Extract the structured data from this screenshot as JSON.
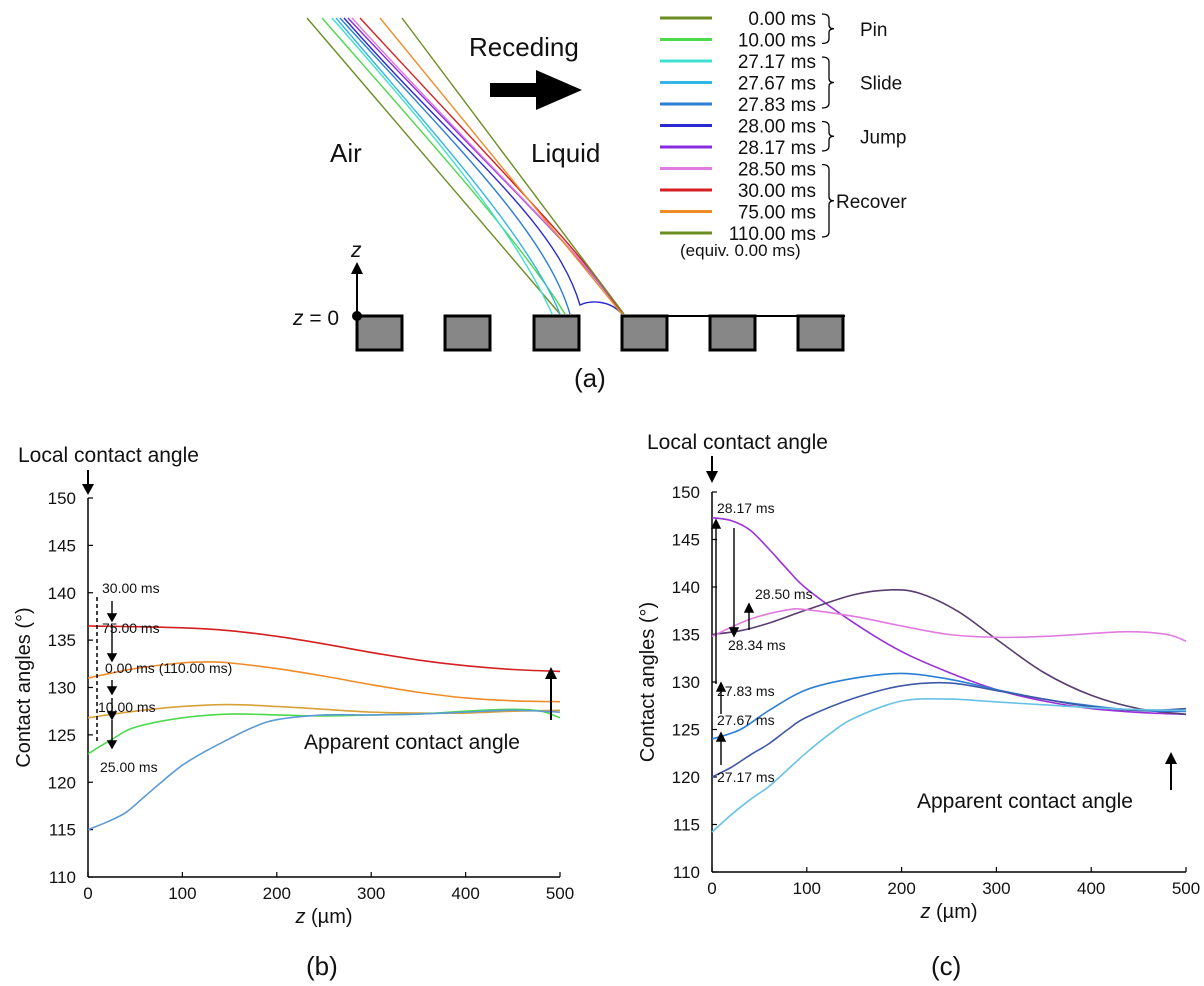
{
  "figure": {
    "panel_a": {
      "label": "(a)",
      "direction_label": "Receding",
      "air_label": "Air",
      "liquid_label": "Liquid",
      "z_axis_label": "z",
      "z0_label_var": "z",
      "z0_label_rest": " = 0",
      "legend": [
        {
          "label": "0.00 ms",
          "color": "#6b8e23"
        },
        {
          "label": "10.00 ms",
          "color": "#4cd94c"
        },
        {
          "label": "27.17 ms",
          "color": "#40e0d0"
        },
        {
          "label": "27.67 ms",
          "color": "#33b5e5"
        },
        {
          "label": "27.83 ms",
          "color": "#2a7fd4"
        },
        {
          "label": "28.00 ms",
          "color": "#2a2ad0"
        },
        {
          "label": "28.17 ms",
          "color": "#8a2be2"
        },
        {
          "label": "28.50 ms",
          "color": "#e07ce0"
        },
        {
          "label": "30.00 ms",
          "color": "#d42020"
        },
        {
          "label": "75.00 ms",
          "color": "#f08c28"
        },
        {
          "label": "110.00 ms",
          "color": "#6b8e23"
        }
      ],
      "legend_note": "(equiv. 0.00 ms)",
      "groups": [
        {
          "label": "Pin",
          "from": 0,
          "to": 1
        },
        {
          "label": "Slide",
          "from": 2,
          "to": 4
        },
        {
          "label": "Jump",
          "from": 5,
          "to": 6
        },
        {
          "label": "Recover",
          "from": 7,
          "to": 10
        }
      ]
    },
    "panel_b": {
      "label": "(b)",
      "local_label": "Local contact angle",
      "apparent_label": "Apparent contact angle",
      "curve_labels": [
        "30.00 ms",
        "75.00 ms",
        "0.00 ms (110.00 ms)",
        "10.00 ms",
        "25.00 ms"
      ]
    },
    "panel_c": {
      "label": "(c)",
      "local_label": "Local contact angle",
      "apparent_label": "Apparent contact angle",
      "curve_labels": [
        "28.17 ms",
        "28.50 ms",
        "28.34 ms",
        "27.83 ms",
        "27.67 ms",
        "27.17 ms"
      ]
    }
  },
  "chart_data": [
    {
      "type": "line",
      "panel": "(b)",
      "xlabel_var": "z",
      "xlabel_unit": " (µm)",
      "ylabel": "Contact angles (°)",
      "xlim": [
        0,
        500
      ],
      "ylim": [
        110,
        150
      ],
      "xticks": [
        0,
        100,
        200,
        300,
        400,
        500
      ],
      "yticks": [
        110,
        115,
        120,
        125,
        130,
        135,
        140,
        145,
        150
      ],
      "grid": false,
      "series": [
        {
          "name": "30.00 ms",
          "color": "#d42020",
          "x": [
            0,
            100,
            150,
            200,
            250,
            300,
            350,
            400,
            450,
            500
          ],
          "y": [
            136.5,
            136.3,
            136.0,
            135.4,
            134.6,
            133.7,
            132.9,
            132.3,
            131.9,
            131.7
          ]
        },
        {
          "name": "75.00 ms",
          "color": "#f08c28",
          "x": [
            0,
            50,
            100,
            130,
            150,
            200,
            250,
            300,
            350,
            400,
            450,
            500
          ],
          "y": [
            131.0,
            132.0,
            132.6,
            132.7,
            132.6,
            132.0,
            131.2,
            130.3,
            129.5,
            128.9,
            128.6,
            128.5
          ]
        },
        {
          "name": "0.00 ms (110.00 ms)",
          "color": "#d7a13a",
          "x": [
            0,
            50,
            100,
            150,
            200,
            250,
            300,
            350,
            400,
            450,
            500
          ],
          "y": [
            126.8,
            127.5,
            128.0,
            128.2,
            128.0,
            127.7,
            127.4,
            127.3,
            127.3,
            127.5,
            127.6
          ]
        },
        {
          "name": "10.00 ms",
          "color": "#4cd94c",
          "x": [
            0,
            25,
            50,
            100,
            150,
            200,
            250,
            300,
            350,
            400,
            450,
            480,
            500
          ],
          "y": [
            123.0,
            124.5,
            125.8,
            126.8,
            127.2,
            127.1,
            127.0,
            127.1,
            127.2,
            127.5,
            127.7,
            127.5,
            126.8
          ]
        },
        {
          "name": "25.00 ms",
          "color": "#5b9bd5",
          "x": [
            0,
            20,
            40,
            60,
            80,
            100,
            125,
            150,
            175,
            200,
            250,
            300,
            350,
            400,
            450,
            500
          ],
          "y": [
            115.0,
            115.8,
            116.8,
            118.5,
            120.2,
            121.8,
            123.3,
            124.6,
            125.8,
            126.6,
            127.1,
            127.1,
            127.2,
            127.4,
            127.6,
            127.4
          ]
        }
      ]
    },
    {
      "type": "line",
      "panel": "(c)",
      "xlabel_var": "z",
      "xlabel_unit": " (µm)",
      "ylabel": "Contact angles (°)",
      "xlim": [
        0,
        500
      ],
      "ylim": [
        110,
        150
      ],
      "xticks": [
        0,
        100,
        200,
        300,
        400,
        500
      ],
      "yticks": [
        110,
        115,
        120,
        125,
        130,
        135,
        140,
        145,
        150
      ],
      "grid": false,
      "series": [
        {
          "name": "28.17 ms",
          "color": "#9b30d8",
          "x": [
            0,
            20,
            40,
            60,
            80,
            100,
            150,
            200,
            250,
            300,
            350,
            400,
            450,
            500
          ],
          "y": [
            147.3,
            147.0,
            146.0,
            144.0,
            141.8,
            139.8,
            136.2,
            133.2,
            131.0,
            129.2,
            128.0,
            127.2,
            126.8,
            126.6
          ]
        },
        {
          "name": "28.34 ms",
          "color": "#5a3d6e",
          "x": [
            0,
            30,
            60,
            100,
            150,
            190,
            220,
            260,
            300,
            350,
            400,
            450,
            500
          ],
          "y": [
            135.0,
            135.4,
            136.2,
            137.6,
            139.2,
            139.7,
            139.3,
            137.4,
            134.5,
            131.0,
            128.6,
            127.2,
            126.6
          ]
        },
        {
          "name": "28.50 ms",
          "color": "#e07ce0",
          "x": [
            0,
            40,
            80,
            100,
            150,
            200,
            250,
            300,
            350,
            400,
            440,
            480,
            500
          ],
          "y": [
            134.8,
            136.6,
            137.6,
            137.6,
            136.9,
            135.9,
            135.0,
            134.7,
            134.8,
            135.1,
            135.3,
            135.0,
            134.3
          ]
        },
        {
          "name": "27.83 ms",
          "color": "#2a7fd4",
          "x": [
            0,
            30,
            60,
            100,
            150,
            200,
            250,
            300,
            350,
            400,
            450,
            500
          ],
          "y": [
            124.0,
            125.0,
            127.0,
            129.2,
            130.4,
            130.9,
            130.3,
            129.2,
            128.2,
            127.5,
            127.0,
            126.9
          ]
        },
        {
          "name": "27.67 ms",
          "color": "#3f59a8",
          "x": [
            0,
            20,
            40,
            60,
            80,
            100,
            150,
            200,
            250,
            300,
            350,
            400,
            450,
            500
          ],
          "y": [
            120.0,
            121.0,
            122.3,
            123.5,
            125.0,
            126.3,
            128.3,
            129.6,
            129.9,
            129.1,
            128.2,
            127.4,
            127.0,
            127.2
          ]
        },
        {
          "name": "27.17 ms",
          "color": "#69c2e6",
          "x": [
            0,
            20,
            40,
            60,
            80,
            100,
            125,
            150,
            200,
            250,
            300,
            350,
            400,
            450,
            500
          ],
          "y": [
            114.2,
            116.0,
            117.6,
            119.0,
            120.8,
            122.6,
            124.6,
            126.2,
            128.0,
            128.2,
            127.9,
            127.6,
            127.3,
            127.1,
            127.0
          ]
        }
      ]
    }
  ]
}
